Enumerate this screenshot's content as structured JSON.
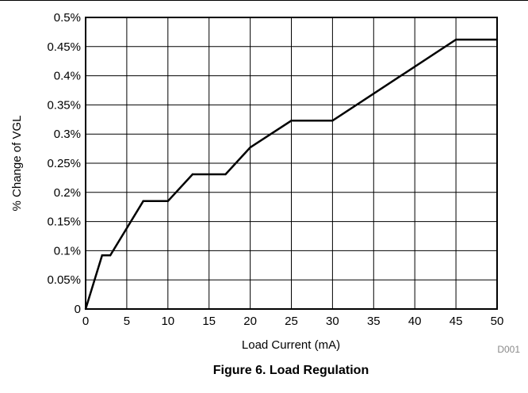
{
  "chart_data": {
    "type": "line",
    "xlabel": "Load Current (mA)",
    "ylabel": "% Change of VGL",
    "xlim": [
      0,
      50
    ],
    "ylim": [
      0,
      0.5
    ],
    "x_ticks": [
      0,
      5,
      10,
      15,
      20,
      25,
      30,
      35,
      40,
      45,
      50
    ],
    "x_tick_labels": [
      "0",
      "5",
      "10",
      "15",
      "20",
      "25",
      "30",
      "35",
      "40",
      "45",
      "50"
    ],
    "y_ticks": [
      0,
      0.05,
      0.1,
      0.15,
      0.2,
      0.25,
      0.3,
      0.35,
      0.4,
      0.45,
      0.5
    ],
    "y_tick_labels": [
      "0",
      "0.05%",
      "0.1%",
      "0.15%",
      "0.2%",
      "0.25%",
      "0.3%",
      "0.35%",
      "0.4%",
      "0.45%",
      "0.5%"
    ],
    "grid": true,
    "series": [
      {
        "x": [
          0,
          2,
          3,
          7,
          10,
          13,
          17,
          20,
          25,
          30,
          45,
          50
        ],
        "y": [
          0,
          0.092,
          0.092,
          0.185,
          0.185,
          0.231,
          0.231,
          0.277,
          0.323,
          0.323,
          0.462,
          0.462
        ],
        "color": "#000000"
      }
    ],
    "figure_id": "D001"
  },
  "caption": "Figure 6. Load Regulation"
}
